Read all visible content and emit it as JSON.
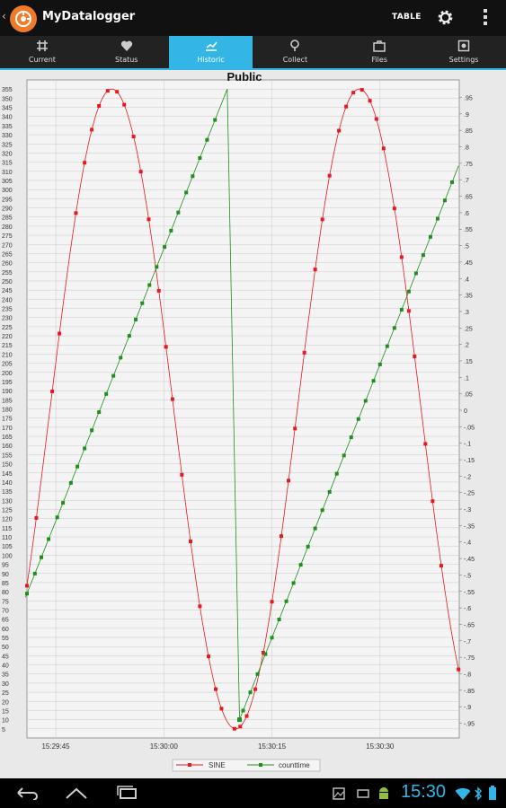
{
  "app": {
    "title": "MyDatalogger",
    "table_label": "TABLE"
  },
  "tabs": [
    {
      "label": "Current",
      "icon": "hash-icon"
    },
    {
      "label": "Status",
      "icon": "heart-icon"
    },
    {
      "label": "Historic",
      "icon": "chart-icon",
      "active": true
    },
    {
      "label": "Collect",
      "icon": "collect-icon"
    },
    {
      "label": "Files",
      "icon": "briefcase-icon"
    },
    {
      "label": "Settings",
      "icon": "settings-icon"
    }
  ],
  "status_bar": {
    "time": "15:30"
  },
  "colors": {
    "accent": "#33b5e5",
    "sine": "#e8191e",
    "counttime": "#1f8f1f"
  },
  "chart_data": {
    "type": "line",
    "title": "Public",
    "x_tick_labels": [
      "15:29:45",
      "15:30:00",
      "15:30:15",
      "15:30:30"
    ],
    "x_ticks_sec": [
      45,
      60,
      75,
      90
    ],
    "x_range_sec": [
      41,
      101
    ],
    "left_axis": {
      "min": 0,
      "max": 360,
      "step": 5
    },
    "right_axis": {
      "min": -1.0,
      "max": 1.0,
      "step": 0.05
    },
    "legend": [
      "SINE",
      "counttime"
    ],
    "series": [
      {
        "name": "SINE",
        "axis": "left",
        "formula": "180 + 175*sin(0.183*(t-44.2))",
        "sample_times": [
          41.0,
          42.3,
          44.5,
          45.5,
          47.8,
          49.0,
          50.0,
          51.0,
          52.2,
          53.5,
          54.5,
          55.8,
          56.8,
          57.9,
          59.3,
          60.3,
          61.2,
          62.5,
          63.7,
          65.0,
          66.2,
          67.2,
          68.0,
          69.8,
          70.6,
          71.5,
          72.7,
          73.8,
          75.0,
          76.3,
          77.3,
          78.2,
          79.5,
          81.0,
          82.0,
          83.0,
          84.3,
          85.3,
          86.3,
          87.5,
          88.6,
          89.5,
          90.5,
          92.0,
          93.0,
          94.0,
          94.8,
          96.3,
          97.3,
          98.5,
          100.9
        ]
      },
      {
        "name": "counttime",
        "axis": "left",
        "breakpoint_sec": 69.6,
        "before": {
          "from": [
            40.8,
            77
          ],
          "to": [
            68.8,
            355
          ]
        },
        "after": {
          "from": [
            70.5,
            10
          ],
          "to": [
            100.9,
            313
          ]
        },
        "sample_times": [
          41.0,
          42.1,
          43.0,
          44.0,
          45.2,
          46.0,
          47.1,
          48.0,
          49.0,
          50.0,
          51.0,
          52.0,
          53.0,
          54.0,
          55.2,
          56.1,
          57.0,
          58.0,
          59.0,
          60.1,
          61.0,
          62.0,
          63.1,
          64.0,
          65.0,
          66.0,
          67.1,
          71.0,
          72.0,
          73.0,
          74.1,
          75.0,
          76.0,
          77.0,
          78.0,
          79.0,
          80.0,
          81.0,
          82.0,
          83.0,
          84.0,
          85.0,
          86.0,
          87.0,
          88.0,
          89.1,
          90.0,
          91.0,
          92.0,
          93.0,
          94.0,
          95.0,
          96.0,
          97.0,
          98.0,
          99.0,
          100.0
        ]
      }
    ]
  }
}
